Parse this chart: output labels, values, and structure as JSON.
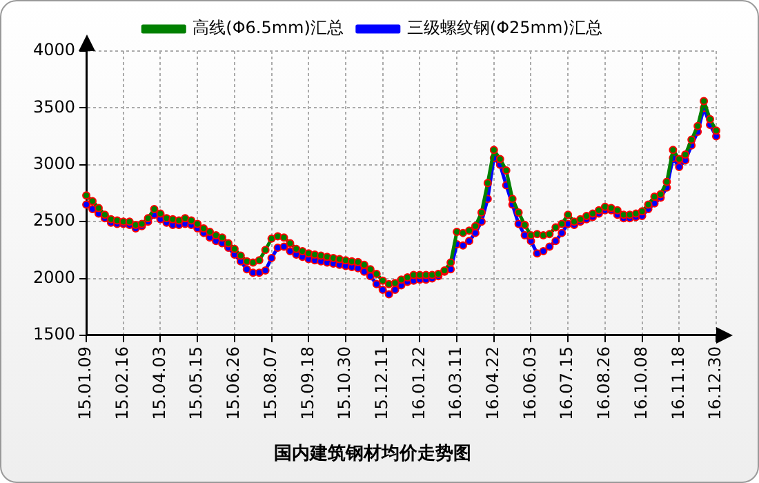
{
  "chart_data": {
    "type": "line",
    "title": "国内建筑钢材均价走势图",
    "categories": [
      "15.01.09",
      null,
      null,
      null,
      null,
      null,
      "15.02.16",
      null,
      null,
      null,
      null,
      null,
      "15.04.03",
      null,
      null,
      null,
      null,
      null,
      "15.05.15",
      null,
      null,
      null,
      null,
      null,
      "15.06.26",
      null,
      null,
      null,
      null,
      null,
      "15.08.07",
      null,
      null,
      null,
      null,
      null,
      "15.09.18",
      null,
      null,
      null,
      null,
      null,
      "15.10.30",
      null,
      null,
      null,
      null,
      null,
      "15.12.11",
      null,
      null,
      null,
      null,
      null,
      "16.01.22",
      null,
      null,
      null,
      null,
      null,
      "16.03.11",
      null,
      null,
      null,
      null,
      null,
      "16.04.22",
      null,
      null,
      null,
      null,
      null,
      "16.06.03",
      null,
      null,
      null,
      null,
      null,
      "16.07.15",
      null,
      null,
      null,
      null,
      null,
      "16.08.26",
      null,
      null,
      null,
      null,
      null,
      "16.10.08",
      null,
      null,
      null,
      null,
      null,
      "16.11.18",
      null,
      null,
      null,
      null,
      null,
      "16.12.30"
    ],
    "series": [
      {
        "name": "高线(Φ6.5mm)汇总",
        "color": "#008000",
        "values": [
          2730,
          2680,
          2620,
          2560,
          2520,
          2510,
          2500,
          2500,
          2470,
          2480,
          2530,
          2610,
          2570,
          2530,
          2520,
          2510,
          2530,
          2510,
          2480,
          2440,
          2410,
          2380,
          2360,
          2310,
          2260,
          2200,
          2150,
          2140,
          2160,
          2250,
          2350,
          2370,
          2360,
          2310,
          2260,
          2240,
          2220,
          2210,
          2200,
          2190,
          2180,
          2170,
          2160,
          2150,
          2145,
          2120,
          2080,
          2040,
          1980,
          1950,
          1960,
          1990,
          2010,
          2030,
          2030,
          2030,
          2030,
          2040,
          2070,
          2140,
          2410,
          2400,
          2420,
          2460,
          2580,
          2840,
          3130,
          3050,
          2950,
          2700,
          2580,
          2470,
          2380,
          2390,
          2380,
          2390,
          2450,
          2480,
          2560,
          2500,
          2520,
          2550,
          2570,
          2600,
          2630,
          2620,
          2600,
          2560,
          2560,
          2570,
          2590,
          2650,
          2720,
          2740,
          2850,
          3130,
          3050,
          3090,
          3220,
          3340,
          3560,
          3400,
          3300
        ]
      },
      {
        "name": "三级螺纹钢(Φ25mm)汇总",
        "color": "#0000ff",
        "values": [
          2650,
          2610,
          2570,
          2530,
          2490,
          2480,
          2480,
          2470,
          2440,
          2460,
          2500,
          2560,
          2520,
          2490,
          2470,
          2470,
          2480,
          2470,
          2440,
          2400,
          2360,
          2330,
          2310,
          2270,
          2210,
          2150,
          2080,
          2050,
          2050,
          2070,
          2180,
          2270,
          2280,
          2240,
          2210,
          2190,
          2170,
          2160,
          2150,
          2140,
          2130,
          2120,
          2110,
          2100,
          2090,
          2060,
          2020,
          1950,
          1900,
          1860,
          1900,
          1940,
          1970,
          1980,
          1990,
          1990,
          2000,
          2020,
          2060,
          2080,
          2300,
          2290,
          2330,
          2400,
          2500,
          2700,
          3060,
          3000,
          2820,
          2650,
          2480,
          2380,
          2330,
          2220,
          2240,
          2280,
          2330,
          2400,
          2480,
          2470,
          2500,
          2520,
          2540,
          2570,
          2600,
          2600,
          2560,
          2530,
          2530,
          2540,
          2550,
          2610,
          2660,
          2710,
          2800,
          3060,
          2980,
          3040,
          3170,
          3290,
          3500,
          3350,
          3250
        ]
      }
    ],
    "ylim": [
      1500,
      4000
    ],
    "yticks": [
      1500,
      2000,
      2500,
      3000,
      3500,
      4000
    ],
    "grid": true,
    "legend": "top",
    "marker": "circle",
    "line_style": "solid"
  }
}
